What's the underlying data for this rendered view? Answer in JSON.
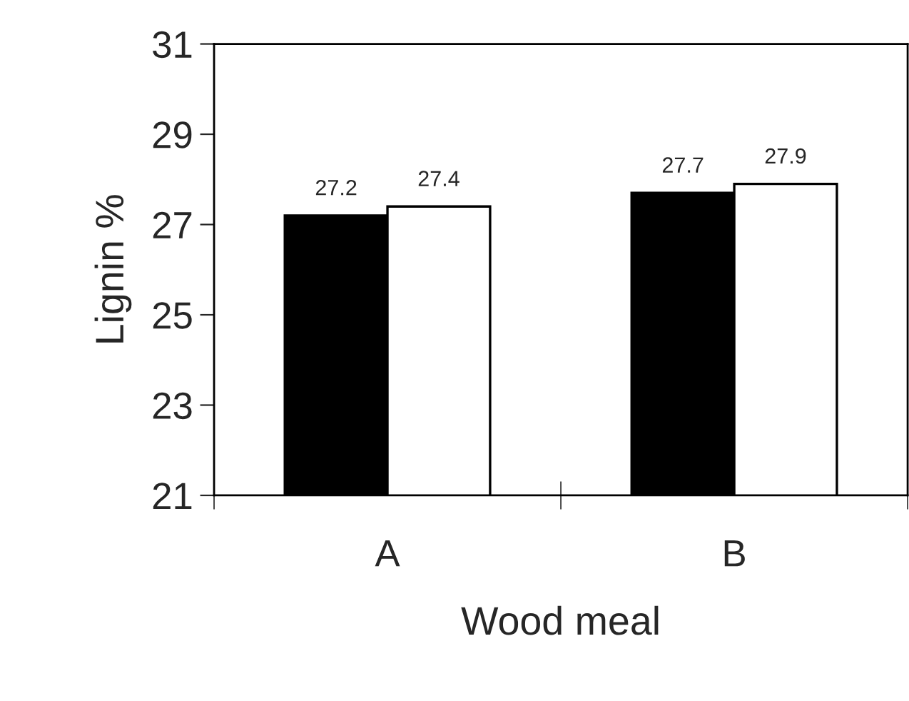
{
  "chart_data": {
    "type": "bar",
    "xlabel": "Wood meal",
    "ylabel": "Lignin %",
    "categories": [
      "A",
      "B"
    ],
    "series": [
      {
        "color": "#000000",
        "values": [
          27.2,
          27.7
        ]
      },
      {
        "color": "#ffffff",
        "values": [
          27.4,
          27.9
        ]
      }
    ],
    "ylim": [
      21,
      31
    ],
    "yticks": [
      21,
      23,
      25,
      27,
      29,
      31
    ],
    "grid": false,
    "legend": false,
    "data_labels": true
  }
}
